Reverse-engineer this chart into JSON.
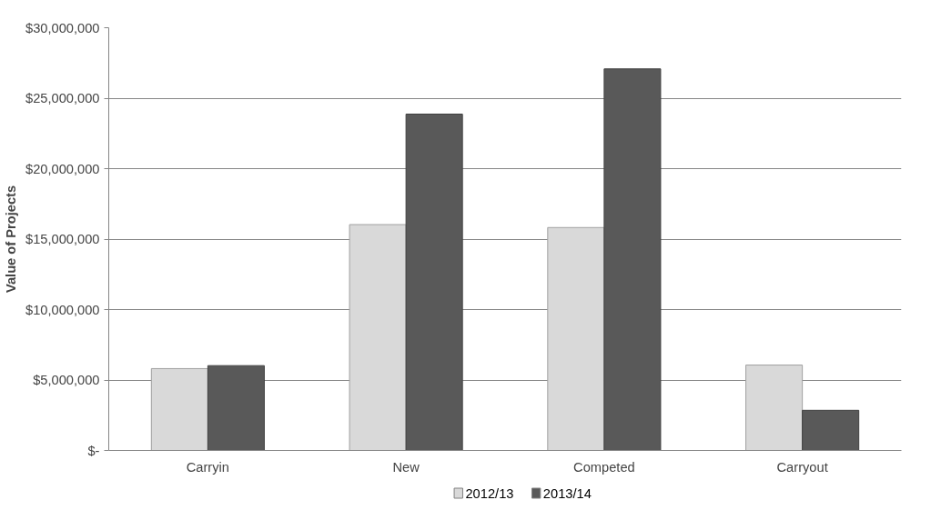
{
  "chart_data": {
    "type": "bar",
    "ylabel": "Value of Projects",
    "categories": [
      "Carryin",
      "New",
      "Competed",
      "Carryout"
    ],
    "series": [
      {
        "name": "2012/13",
        "color": "#d9d9d9",
        "values": [
          5810000,
          16030000,
          15820000,
          6060000
        ]
      },
      {
        "name": "2013/14",
        "color": "#595959",
        "values": [
          6020000,
          23870000,
          27080000,
          2850000
        ]
      }
    ],
    "ylim": [
      0,
      30000000
    ],
    "yticks": [
      {
        "value": 0,
        "label": "$-"
      },
      {
        "value": 5000000,
        "label": "$5,000,000"
      },
      {
        "value": 10000000,
        "label": "$10,000,000"
      },
      {
        "value": 15000000,
        "label": "$15,000,000"
      },
      {
        "value": 20000000,
        "label": "$20,000,000"
      },
      {
        "value": 25000000,
        "label": "$25,000,000"
      },
      {
        "value": 30000000,
        "label": "$30,000,000"
      }
    ],
    "grid": "y",
    "legend": "bottom"
  }
}
